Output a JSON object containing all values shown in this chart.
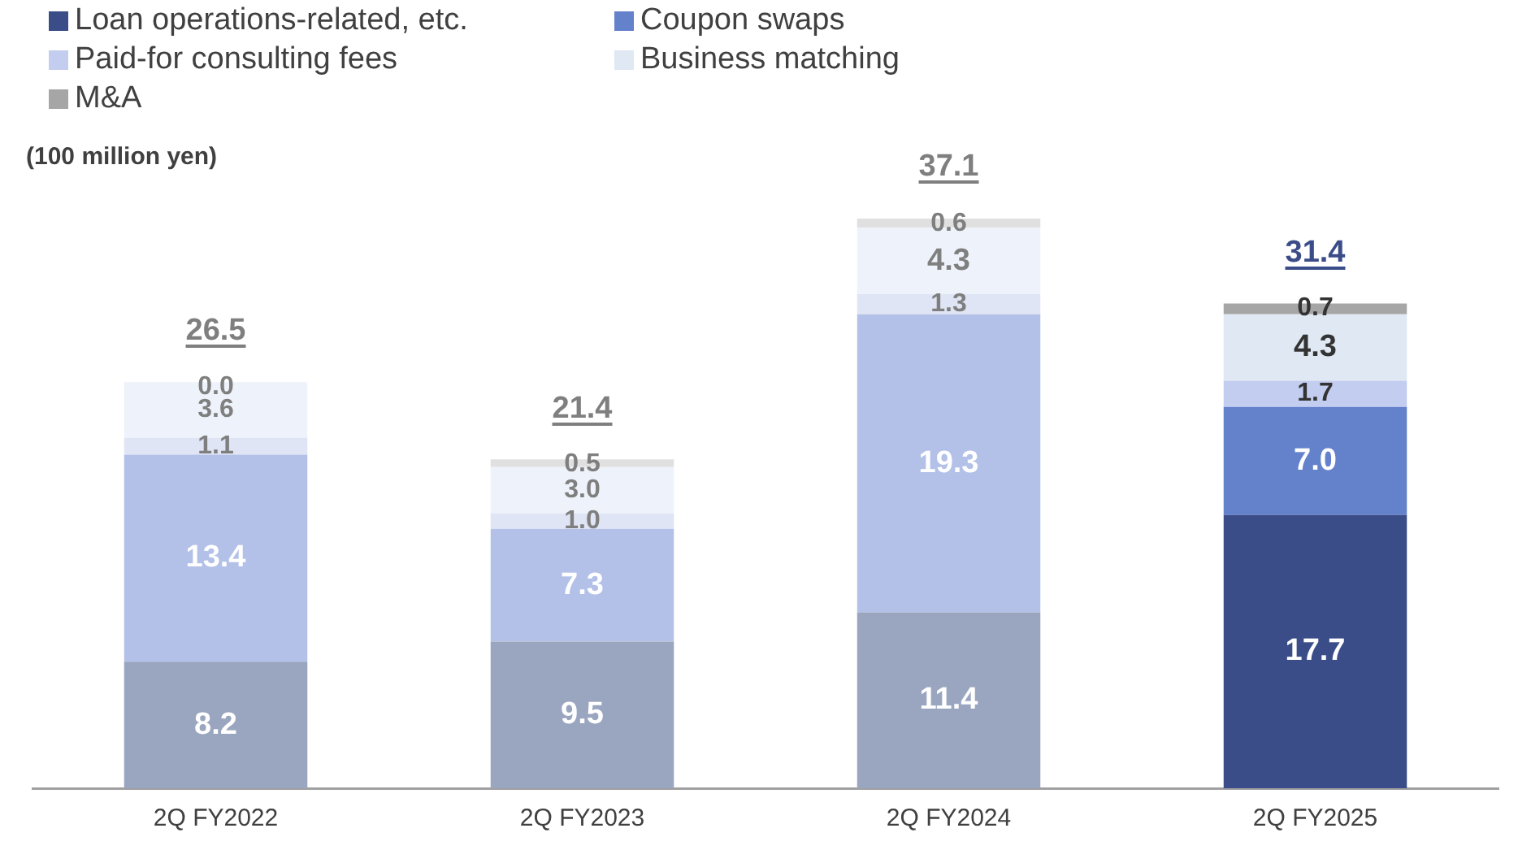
{
  "chart_data": {
    "type": "bar",
    "stacked": true,
    "ylabel": "(100 million yen)",
    "categories": [
      "2Q FY2022",
      "2Q FY2023",
      "2Q FY2024",
      "2Q FY2025"
    ],
    "series": [
      {
        "name": "Loan operations-related, etc.",
        "color": "#3a4d88",
        "colors": [
          "#9aa5c0",
          "#9aa5c0",
          "#9aa5c0",
          "#3a4d88"
        ],
        "values": [
          8.2,
          9.5,
          11.4,
          17.7
        ],
        "value_labels": [
          "8.2",
          "9.5",
          "11.4",
          "17.7"
        ]
      },
      {
        "name": "Coupon swaps",
        "color": "#6481cc",
        "colors": [
          "#b3c1e8",
          "#b3c1e8",
          "#b3c1e8",
          "#6481cc"
        ],
        "values": [
          13.4,
          7.3,
          19.3,
          7.0
        ],
        "value_labels": [
          "13.4",
          "7.3",
          "19.3",
          "7.0"
        ]
      },
      {
        "name": "Paid-for consulting fees",
        "color": "#c3cdf0",
        "colors": [
          "#dfe5f5",
          "#dfe5f5",
          "#dfe5f5",
          "#c3cdf0"
        ],
        "values": [
          1.1,
          1.0,
          1.3,
          1.7
        ],
        "value_labels": [
          "1.1",
          "1.0",
          "1.3",
          "1.7"
        ]
      },
      {
        "name": "Business matching",
        "color": "#dfe8f3",
        "colors": [
          "#eef2fa",
          "#eef2fa",
          "#eef2fa",
          "#dfe8f3"
        ],
        "values": [
          3.6,
          3.0,
          4.3,
          4.3
        ],
        "value_labels": [
          "3.6",
          "3.0",
          "4.3",
          "4.3"
        ]
      },
      {
        "name": "M&A",
        "color": "#a6a6a6",
        "colors": [
          "#e0e0e0",
          "#e0e0e0",
          "#e0e0e0",
          "#a6a6a6"
        ],
        "values": [
          0.0,
          0.5,
          0.6,
          0.7
        ],
        "value_labels": [
          "0.0",
          "0.5",
          "0.6",
          "0.7"
        ]
      }
    ],
    "totals": [
      "26.5",
      "21.4",
      "37.1",
      "31.4"
    ],
    "grid": false,
    "legend": "top left"
  }
}
